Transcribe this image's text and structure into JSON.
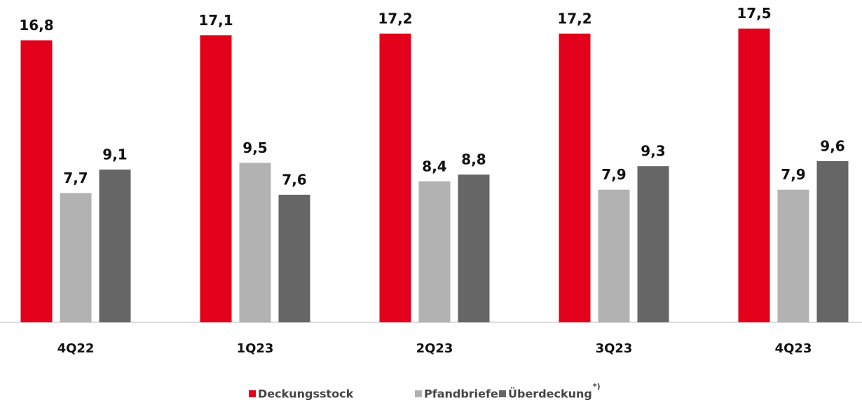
{
  "chart_data": {
    "type": "bar",
    "categories": [
      "4Q22",
      "1Q23",
      "2Q23",
      "3Q23",
      "4Q23"
    ],
    "series": [
      {
        "name": "Deckungsstock",
        "color": "#e2001a",
        "values": [
          16.8,
          17.1,
          17.2,
          17.2,
          17.5
        ],
        "value_labels": [
          "16,8",
          "17,1",
          "17,2",
          "17,2",
          "17,5"
        ]
      },
      {
        "name": "Pfandbriefe",
        "color": "#b2b2b2",
        "values": [
          7.7,
          9.5,
          8.4,
          7.9,
          7.9
        ],
        "value_labels": [
          "7,7",
          "9,5",
          "8,4",
          "7,9",
          "7,9"
        ]
      },
      {
        "name": "Überdeckung",
        "color": "#666666",
        "values": [
          9.1,
          7.6,
          8.8,
          9.3,
          9.6
        ],
        "value_labels": [
          "9,1",
          "7,6",
          "8,8",
          "9,3",
          "9,6"
        ]
      }
    ],
    "series_note": "*)",
    "ylim": [
      0,
      19.2
    ],
    "legend": "bottom"
  }
}
